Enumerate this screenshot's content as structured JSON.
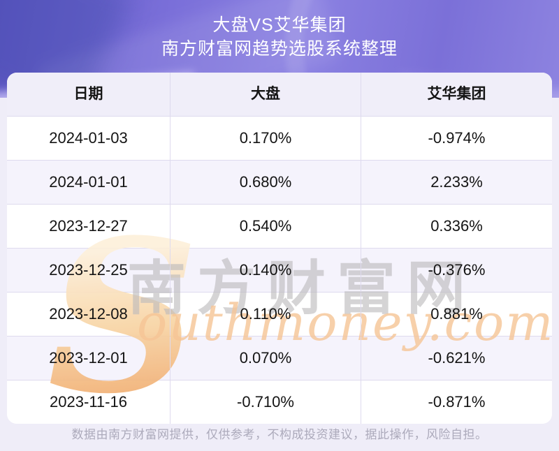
{
  "header": {
    "title": "大盘VS艾华集团",
    "subtitle": "南方财富网趋势选股系统整理"
  },
  "table": {
    "columns": [
      "日期",
      "大盘",
      "艾华集团"
    ],
    "rows": [
      {
        "date": "2024-01-03",
        "market": "0.170%",
        "stock": "-0.974%"
      },
      {
        "date": "2024-01-01",
        "market": "0.680%",
        "stock": "2.233%"
      },
      {
        "date": "2023-12-27",
        "market": "0.540%",
        "stock": "0.336%"
      },
      {
        "date": "2023-12-25",
        "market": "0.140%",
        "stock": "-0.376%"
      },
      {
        "date": "2023-12-08",
        "market": "0.110%",
        "stock": "0.881%"
      },
      {
        "date": "2023-12-01",
        "market": "0.070%",
        "stock": "-0.621%"
      },
      {
        "date": "2023-11-16",
        "market": "-0.710%",
        "stock": "-0.871%"
      }
    ]
  },
  "chart_data": {
    "type": "table",
    "title": "大盘VS艾华集团",
    "subtitle": "南方财富网趋势选股系统整理",
    "columns": [
      "日期",
      "大盘",
      "艾华集团"
    ],
    "rows": [
      [
        "2024-01-03",
        "0.170%",
        "-0.974%"
      ],
      [
        "2024-01-01",
        "0.680%",
        "2.233%"
      ],
      [
        "2023-12-27",
        "0.540%",
        "0.336%"
      ],
      [
        "2023-12-25",
        "0.140%",
        "-0.376%"
      ],
      [
        "2023-12-08",
        "0.110%",
        "0.881%"
      ],
      [
        "2023-12-01",
        "0.070%",
        "-0.621%"
      ],
      [
        "2023-11-16",
        "-0.710%",
        "-0.871%"
      ]
    ],
    "series": [
      {
        "name": "大盘",
        "values": [
          0.17,
          0.68,
          0.54,
          0.14,
          0.11,
          0.07,
          -0.71
        ]
      },
      {
        "name": "艾华集团",
        "values": [
          -0.974,
          2.233,
          0.336,
          -0.376,
          0.881,
          -0.621,
          -0.871
        ]
      }
    ],
    "categories": [
      "2024-01-03",
      "2024-01-01",
      "2023-12-27",
      "2023-12-25",
      "2023-12-08",
      "2023-12-01",
      "2023-11-16"
    ],
    "unit": "%"
  },
  "watermark": {
    "s": "S",
    "cn": "南方财富网",
    "en": "outhmoney.com"
  },
  "footer": {
    "disclaimer": "数据由南方财富网提供，仅供参考，不构成投资建议，据此操作，风险自担。"
  },
  "colors": {
    "hero_purple": "#7B70D8",
    "page_background": "#EFEDF8",
    "header_row": "#F0EEF9",
    "alt_row": "#F5F3FC",
    "divider": "#DEDAEE",
    "cell_text": "#141414",
    "footer_text": "#ACAABB",
    "watermark_orange": "#F6C596",
    "watermark_gray": "#BCBABC"
  }
}
